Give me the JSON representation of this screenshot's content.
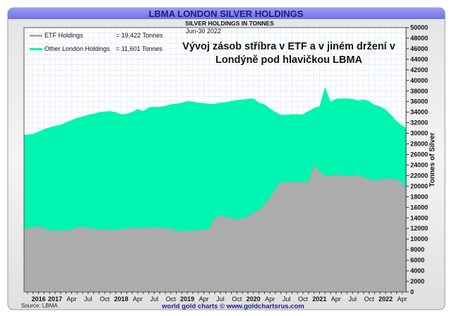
{
  "header": {
    "title": "LBMA LONDON SILVER HOLDINGS",
    "subtitle": "SILVER HOLDINGS IN TONNES",
    "date": "Jun-30  2022"
  },
  "annotation": [
    "Vývoj zásob stříbra v ETF a v jiném držení v",
    "Londýně pod hlavičkou LBMA"
  ],
  "legend": {
    "items": [
      {
        "label": "ETF Holdings",
        "value": "= 19,422 Tonnes",
        "color": "#acacac"
      },
      {
        "label": "Other London Holdings",
        "value": "= 11,601 Tonnes",
        "color": "#00f5b0"
      }
    ]
  },
  "footer": {
    "source": "Source: LBMA",
    "credit": "world gold charts © www.goldchartsrus.com"
  },
  "colors": {
    "title_bar": "#7b7fe8",
    "etf": "#acacac",
    "other": "#00f5b0",
    "grid": "#dce8f2",
    "credit": "#1a1a8c"
  },
  "chart_data": {
    "type": "area",
    "stacked": true,
    "title": "LBMA LONDON SILVER HOLDINGS",
    "subtitle": "SILVER HOLDINGS IN TONNES",
    "ylabel": "Tonnes of Silver",
    "ylim": [
      0,
      50000
    ],
    "y_axis_side": "right",
    "y_ticks": [
      0,
      2000,
      4000,
      6000,
      8000,
      10000,
      12000,
      14000,
      16000,
      18000,
      20000,
      22000,
      24000,
      26000,
      28000,
      30000,
      32000,
      34000,
      36000,
      38000,
      40000,
      42000,
      44000,
      46000,
      48000,
      50000
    ],
    "x_start": "2016-08",
    "x_frequency": "monthly",
    "x_ticks": [
      {
        "label": "2016",
        "date": "2016-10",
        "bold": true
      },
      {
        "label": "2017",
        "date": "2017-01",
        "bold": true
      },
      {
        "label": "Apr",
        "date": "2017-04"
      },
      {
        "label": "Jul",
        "date": "2017-07"
      },
      {
        "label": "Oct",
        "date": "2017-10"
      },
      {
        "label": "2018",
        "date": "2018-01",
        "bold": true
      },
      {
        "label": "Apr",
        "date": "2018-04"
      },
      {
        "label": "Jul",
        "date": "2018-07"
      },
      {
        "label": "Oct",
        "date": "2018-10"
      },
      {
        "label": "2019",
        "date": "2019-01",
        "bold": true
      },
      {
        "label": "Apr",
        "date": "2019-04"
      },
      {
        "label": "Jul",
        "date": "2019-07"
      },
      {
        "label": "Oct",
        "date": "2019-10"
      },
      {
        "label": "2020",
        "date": "2020-01",
        "bold": true
      },
      {
        "label": "Apr",
        "date": "2020-04"
      },
      {
        "label": "Jul",
        "date": "2020-07"
      },
      {
        "label": "Oct",
        "date": "2020-10"
      },
      {
        "label": "2021",
        "date": "2021-01",
        "bold": true
      },
      {
        "label": "Apr",
        "date": "2021-04"
      },
      {
        "label": "Jul",
        "date": "2021-07"
      },
      {
        "label": "Oct",
        "date": "2021-10"
      },
      {
        "label": "2022",
        "date": "2022-01",
        "bold": true
      },
      {
        "label": "Apr",
        "date": "2022-04"
      }
    ],
    "grid": true,
    "legend_position": "top-left",
    "series": [
      {
        "name": "ETF Holdings",
        "values": [
          11900,
          12300,
          12400,
          12100,
          11700,
          11700,
          11600,
          11700,
          11800,
          12200,
          12300,
          12100,
          12000,
          11900,
          11800,
          11800,
          11700,
          11900,
          12000,
          12100,
          12200,
          12100,
          12200,
          12200,
          12200,
          12100,
          12000,
          11600,
          11500,
          11600,
          11700,
          11600,
          11800,
          12000,
          14000,
          14500,
          14200,
          13900,
          13800,
          13900,
          14200,
          15000,
          15500,
          16500,
          17800,
          19500,
          20800,
          20700,
          20700,
          20900,
          20700,
          20800,
          24000,
          22800,
          22000,
          21900,
          22200,
          22000,
          22000,
          21900,
          22200,
          21600,
          21400,
          21100,
          21200,
          21400,
          21400,
          21300,
          20700,
          19422
        ]
      },
      {
        "name": "Other London Holdings",
        "values": [
          17800,
          17600,
          17900,
          18700,
          19400,
          19700,
          20000,
          20400,
          20700,
          20700,
          20900,
          21400,
          21700,
          22100,
          22300,
          22400,
          22300,
          21700,
          21700,
          21900,
          22400,
          22100,
          22700,
          22800,
          22800,
          23100,
          23500,
          24000,
          24300,
          24500,
          24300,
          24200,
          23900,
          23600,
          21600,
          21300,
          21700,
          22200,
          22500,
          22500,
          22300,
          21600,
          20300,
          19000,
          16900,
          14500,
          12700,
          12800,
          12900,
          12700,
          12900,
          13400,
          10800,
          12300,
          16800,
          14100,
          14300,
          14600,
          14600,
          14600,
          14000,
          14800,
          14700,
          14300,
          13900,
          13100,
          12100,
          11000,
          10800,
          11601
        ]
      }
    ]
  }
}
